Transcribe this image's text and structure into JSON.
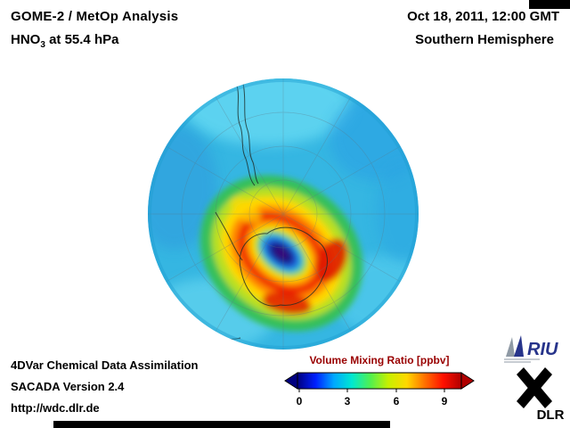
{
  "header": {
    "title_line1": "GOME-2 / MetOp Analysis",
    "hno3_prefix": "HNO",
    "hno3_sub": "3",
    "hno3_suffix": " at 55.4 hPa",
    "date": "Oct 18, 2011, 12:00 GMT",
    "hemisphere": "Southern Hemisphere"
  },
  "footer": {
    "line1": "4DVar Chemical Data Assimilation",
    "line2": "SACADA Version 2.4",
    "line3": "http://wdc.dlr.de"
  },
  "colorbar": {
    "title": "Volume Mixing Ratio [ppbv]",
    "title_color": "#990000",
    "ticks": [
      "0",
      "3",
      "6",
      "9"
    ],
    "stops": [
      "#000080",
      "#0020ff",
      "#00a8ff",
      "#00e8d0",
      "#50f050",
      "#c8f000",
      "#ffd800",
      "#ff7000",
      "#ff1000",
      "#b00000"
    ]
  },
  "logos": {
    "riu": "RIU",
    "dlr": "DLR"
  },
  "chart_data": {
    "type": "heatmap",
    "title": "GOME-2 / MetOp Analysis — HNO3 at 55.4 hPa, Oct 18, 2011, 12:00 GMT",
    "projection": "orthographic, Southern Hemisphere, South Pole centered",
    "variable": "HNO3 volume mixing ratio",
    "units": "ppbv",
    "colorbar_range": [
      0,
      10
    ],
    "colorbar_ticks": [
      0,
      3,
      6,
      9
    ],
    "legend_position": "bottom-center",
    "features": [
      {
        "region": "mid-latitude background (most of disk, cyan)",
        "value_ppbv": 2.5
      },
      {
        "region": "brighter cyan patches near limb (top and lower-left)",
        "value_ppbv": 1.5
      },
      {
        "region": "annular maximum along polar vortex edge, tilted ellipse over Antarctica",
        "value_ppbv": 8.5
      },
      {
        "region": "orange/yellow inner and outer flanks of the ring",
        "value_ppbv": 6.0
      },
      {
        "region": "vortex interior minimum near the pole (dark blue/purple core)",
        "value_ppbv": 0.5
      }
    ]
  }
}
